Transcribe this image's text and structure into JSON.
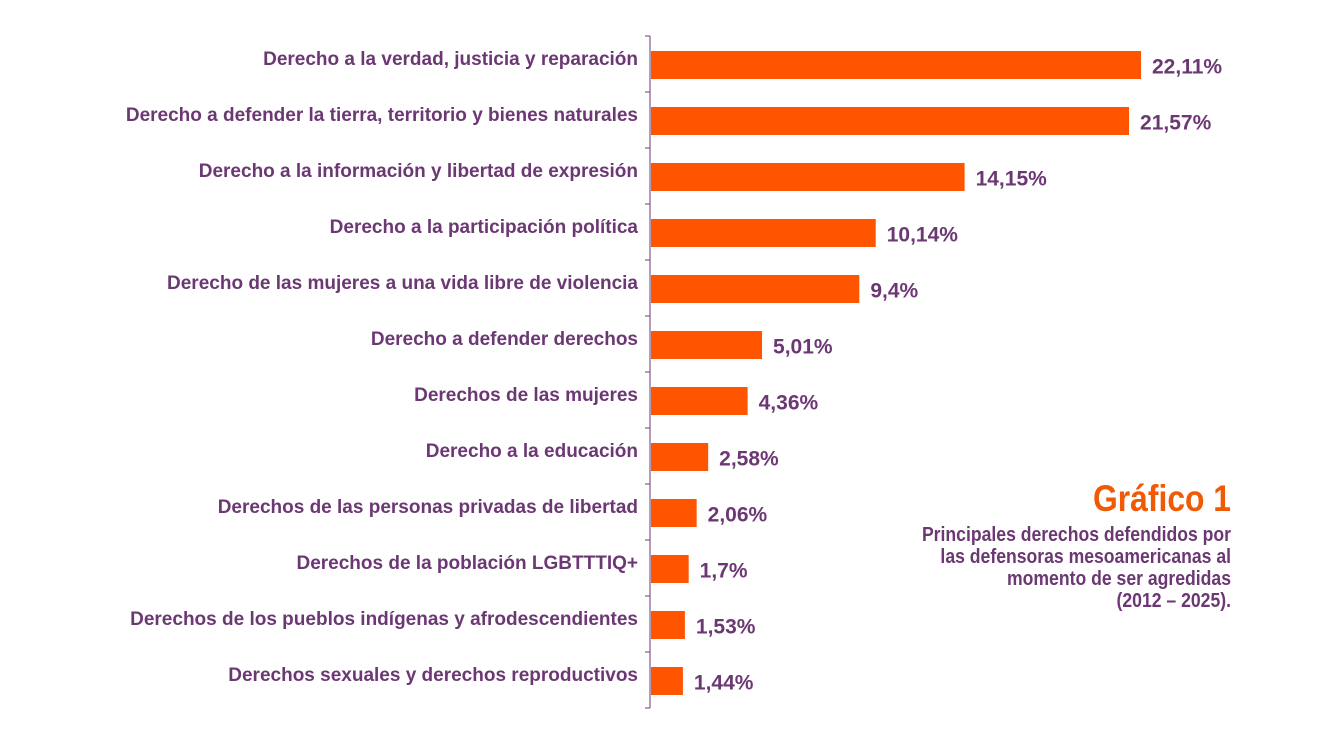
{
  "chart_data": {
    "type": "bar",
    "orientation": "horizontal",
    "categories": [
      "Derecho a la verdad, justicia y reparación",
      "Derecho a defender la tierra, territorio y bienes naturales",
      "Derecho a la información y libertad de expresión",
      "Derecho a la participación política",
      "Derecho de las mujeres a una vida libre de violencia",
      "Derecho a defender derechos",
      "Derechos de las mujeres",
      "Derecho a la educación",
      "Derechos de las personas privadas de libertad",
      "Derechos de la población LGBTTTIQ+",
      "Derechos de los pueblos indígenas y afrodescendientes",
      "Derechos sexuales y derechos reproductivos"
    ],
    "values": [
      22.11,
      21.57,
      14.15,
      10.14,
      9.4,
      5.01,
      4.36,
      2.58,
      2.06,
      1.7,
      1.53,
      1.44
    ],
    "value_labels": [
      "22,11%",
      "21,57%",
      "14,15%",
      "10,14%",
      "9,4%",
      "5,01%",
      "4,36%",
      "2,58%",
      "2,06%",
      "1,7%",
      "1,53%",
      "1,44%"
    ],
    "unit": "%",
    "xlim": [
      0,
      22.11
    ],
    "grid": false,
    "colors": {
      "bar": "#ff5400",
      "text": "#6c3874",
      "axis": "#6c3874"
    }
  },
  "caption": {
    "title": "Gráfico 1",
    "title_color": "#f05a05",
    "subtitle_lines": [
      "Principales derechos defendidos por",
      "las defensoras mesoamericanas al",
      "momento de ser agredidas",
      "(2012 – 2025)."
    ]
  }
}
